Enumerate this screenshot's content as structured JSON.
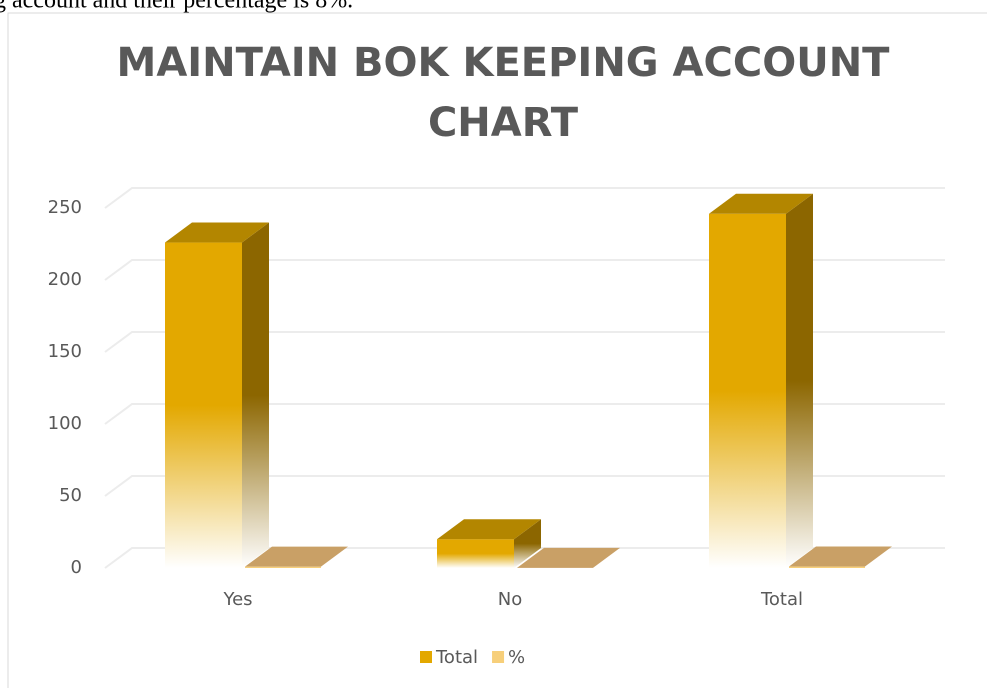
{
  "text_above": "g account and their percentage is 8%.",
  "chart_data": {
    "type": "bar3d",
    "title": "MAINTAIN BOK KEEPING ACCOUNT CHART",
    "categories": [
      "Yes",
      "No",
      "Total"
    ],
    "series": [
      {
        "name": "Total",
        "color": "#e3a800",
        "values": [
          226,
          20,
          246
        ]
      },
      {
        "name": "%",
        "color": "#f7cf7a",
        "values": [
          0.92,
          0.08,
          1
        ]
      }
    ],
    "ylim": [
      0,
      250
    ],
    "yticks": [
      0,
      50,
      100,
      150,
      200,
      250
    ],
    "grid": true,
    "legend": "bottom"
  }
}
